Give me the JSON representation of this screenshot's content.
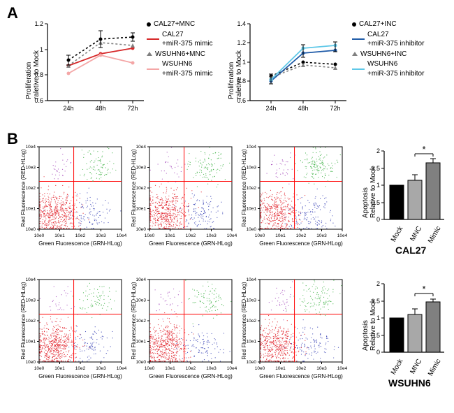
{
  "panelA": {
    "label": "A",
    "chart_left": {
      "type": "line",
      "x_categories": [
        "24h",
        "48h",
        "72h"
      ],
      "ylim": [
        0.6,
        1.2
      ],
      "yticks": [
        0.6,
        0.8,
        1.0,
        1.2
      ],
      "ylabel": "Proliferation\nraletive to Mock",
      "series": [
        {
          "name": "CAL27+MNC",
          "style": "dot-dashed",
          "color": "#000000",
          "marker": "circle",
          "y": [
            0.92,
            1.08,
            1.1
          ]
        },
        {
          "name": "CAL27\n+miR-375 mimic",
          "style": "solid",
          "color": "#d62728",
          "marker": "circle",
          "y": [
            0.88,
            0.97,
            1.01
          ]
        },
        {
          "name": "WSUHN6+MNC",
          "style": "tri-dashed",
          "color": "#808080",
          "marker": "triangle",
          "y": [
            0.88,
            1.05,
            1.03
          ]
        },
        {
          "name": "WSUHN6\n+miR-375 mimic",
          "style": "solid",
          "color": "#f4a6a6",
          "marker": "circle",
          "y": [
            0.82,
            0.96,
            0.9
          ]
        }
      ],
      "error_bar": 0.07,
      "label_fontsize": 10,
      "tick_fontsize": 9,
      "background_color": "#ffffff",
      "axis_color": "#000000"
    },
    "chart_right": {
      "type": "line",
      "x_categories": [
        "24h",
        "48h",
        "72h"
      ],
      "ylim": [
        0.6,
        1.4
      ],
      "yticks": [
        0.6,
        0.8,
        1.0,
        1.2,
        1.4
      ],
      "ylabel": "Proliferation\nraletive to Mock",
      "series": [
        {
          "name": "CAL27+INC",
          "style": "dot-dashed",
          "color": "#000000",
          "marker": "circle",
          "y": [
            0.85,
            1.0,
            0.98
          ]
        },
        {
          "name": "CAL27\n+miR-375 inhibitor",
          "style": "solid",
          "color": "#1f5ba8",
          "marker": "circle",
          "y": [
            0.8,
            1.09,
            1.12
          ]
        },
        {
          "name": "WSUHN6+INC",
          "style": "tri-dashed",
          "color": "#808080",
          "marker": "triangle",
          "y": [
            0.84,
            0.97,
            0.94
          ]
        },
        {
          "name": "WSUHN6\n+miR-375 inhibitor",
          "style": "solid",
          "color": "#5fc8e8",
          "marker": "circle",
          "y": [
            0.82,
            1.14,
            1.17
          ]
        }
      ],
      "error_bar": 0.05,
      "label_fontsize": 10,
      "tick_fontsize": 9,
      "background_color": "#ffffff",
      "axis_color": "#000000"
    }
  },
  "panelB": {
    "label": "B",
    "scatter": {
      "type": "flow-cytometry-scatter",
      "rows": 2,
      "cols": 3,
      "xlabel": "Green Fluorescence (GRN-HLog)",
      "ylabel": "Red Fluorescence (RED-HLog)",
      "scale": "log",
      "xticks": [
        "10e0",
        "10e1",
        "10e2",
        "10e3",
        "10e4"
      ],
      "yticks": [
        "10e0",
        "10e1",
        "10e2",
        "10e3",
        "10e4"
      ],
      "quadrant_line_color": "#ff0000",
      "background": "#ffffff",
      "clusters": {
        "q3_color": "#e01b24",
        "q3_density_low": 0.7,
        "q4_color": "#2f3ab2",
        "q4_density": 0.15,
        "q2_color": "#3cb043",
        "q2_density": 0.12,
        "q1_color": "#a347ba",
        "q1_density": 0.03
      },
      "tick_fontsize": 7,
      "label_fontsize": 9,
      "panels": [
        {
          "row": 0,
          "col": 0,
          "q3": 0.7,
          "q4": 0.14,
          "q2": 0.12,
          "q1": 0.04
        },
        {
          "row": 0,
          "col": 1,
          "q3": 0.66,
          "q4": 0.16,
          "q2": 0.14,
          "q1": 0.04
        },
        {
          "row": 0,
          "col": 2,
          "q3": 0.58,
          "q4": 0.18,
          "q2": 0.19,
          "q1": 0.05
        },
        {
          "row": 1,
          "col": 0,
          "q3": 0.73,
          "q4": 0.13,
          "q2": 0.1,
          "q1": 0.04
        },
        {
          "row": 1,
          "col": 1,
          "q3": 0.7,
          "q4": 0.14,
          "q2": 0.12,
          "q1": 0.04
        },
        {
          "row": 1,
          "col": 2,
          "q3": 0.65,
          "q4": 0.15,
          "q2": 0.15,
          "q1": 0.05
        }
      ]
    },
    "bars": {
      "type": "bar",
      "ylabel": "Apoptosis\nRelative to Mock",
      "categories": [
        "Mock",
        "MNC",
        "Mimic"
      ],
      "ylim": [
        0.0,
        2.0
      ],
      "yticks": [
        0.0,
        0.5,
        1.0,
        1.5,
        2.0
      ],
      "bar_colors": [
        "#000000",
        "#a8a8a8",
        "#808080"
      ],
      "charts": [
        {
          "title": "CAL27",
          "values": [
            1.0,
            1.15,
            1.65
          ],
          "errors": [
            0,
            0.08,
            0.06
          ],
          "sig": {
            "from": 1,
            "to": 2,
            "label": "*"
          }
        },
        {
          "title": "WSUHN6",
          "values": [
            1.0,
            1.1,
            1.48
          ],
          "errors": [
            0,
            0.08,
            0.04
          ],
          "sig": {
            "from": 1,
            "to": 2,
            "label": "*"
          }
        }
      ],
      "label_fontsize": 10,
      "tick_fontsize": 9,
      "title_fontsize": 14,
      "bar_width": 0.7
    }
  }
}
